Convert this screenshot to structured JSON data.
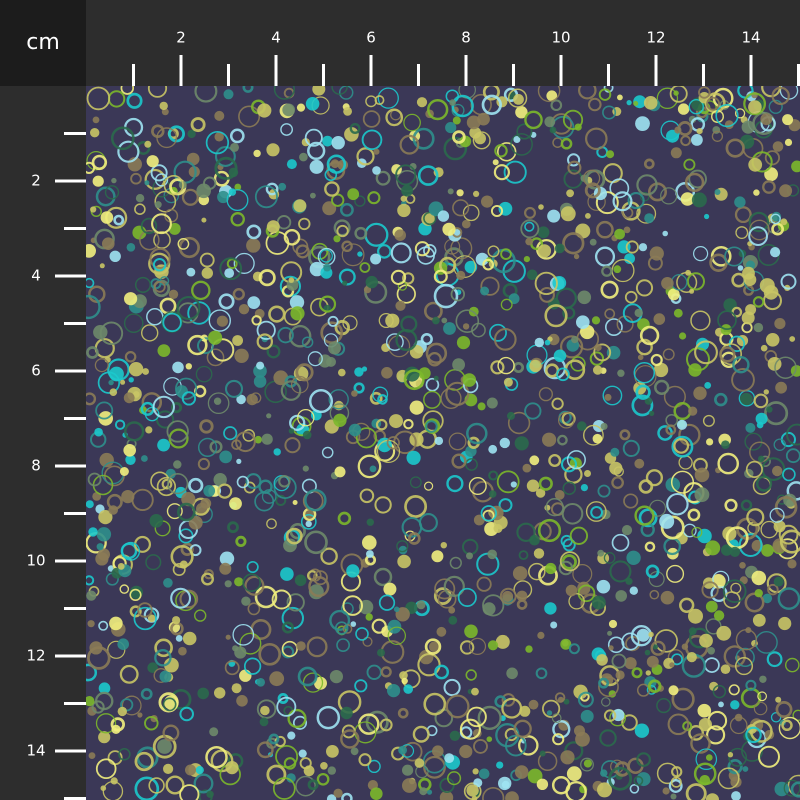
{
  "ruler": {
    "unit": "cm",
    "top": {
      "ticks": [
        2,
        4,
        6,
        8,
        10,
        12,
        14
      ],
      "minor_ticks": [
        1,
        3,
        5,
        7,
        9,
        11,
        13,
        15
      ]
    },
    "left": {
      "ticks": [
        2,
        4,
        6,
        8,
        10,
        12,
        14
      ],
      "minor_ticks": [
        1,
        3,
        5,
        7,
        9,
        11,
        13,
        15
      ]
    }
  }
}
